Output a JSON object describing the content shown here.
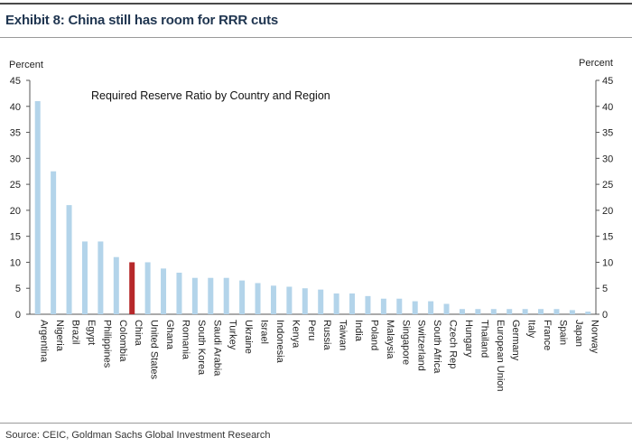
{
  "header": {
    "title": "Exhibit 8: China still has room for RRR cuts"
  },
  "footer": {
    "source": "Source: CEIC, Goldman Sachs Global Investment Research"
  },
  "colors": {
    "bar": "#b3d4ea",
    "highlight": "#b6282a",
    "axis": "#555555",
    "title_text": "#1f3550"
  },
  "chart_data": {
    "type": "bar",
    "title": "Required Reserve Ratio by Country and Region",
    "ylabel_left": "Percent",
    "ylabel_right": "Percent",
    "ylim": [
      0,
      45
    ],
    "yticks": [
      0,
      5,
      10,
      15,
      20,
      25,
      30,
      35,
      40,
      45
    ],
    "highlight": "China",
    "categories": [
      "Argentina",
      "Nigeria",
      "Brazil",
      "Egypt",
      "Philippines",
      "Colombia",
      "China",
      "United States",
      "Ghana",
      "Romania",
      "South Korea",
      "Saudi Arabia",
      "Turkey",
      "Ukraine",
      "Israel",
      "Indonesia",
      "Kenya",
      "Peru",
      "Russia",
      "Taiwan",
      "India",
      "Poland",
      "Malaysia",
      "Singapore",
      "Switzerland",
      "South Africa",
      "Czech Rep",
      "Hungary",
      "Thailand",
      "European Union",
      "Germany",
      "Italy",
      "France",
      "Spain",
      "Japan",
      "Norway"
    ],
    "values": [
      41,
      27.5,
      21,
      14,
      14,
      11,
      10,
      10,
      8.8,
      8,
      7,
      7,
      7,
      6.5,
      6,
      5.5,
      5.3,
      5,
      4.75,
      4,
      4,
      3.5,
      3,
      3,
      2.5,
      2.5,
      2,
      1,
      1,
      1,
      1,
      1,
      1,
      1,
      0.8,
      0.5
    ]
  }
}
